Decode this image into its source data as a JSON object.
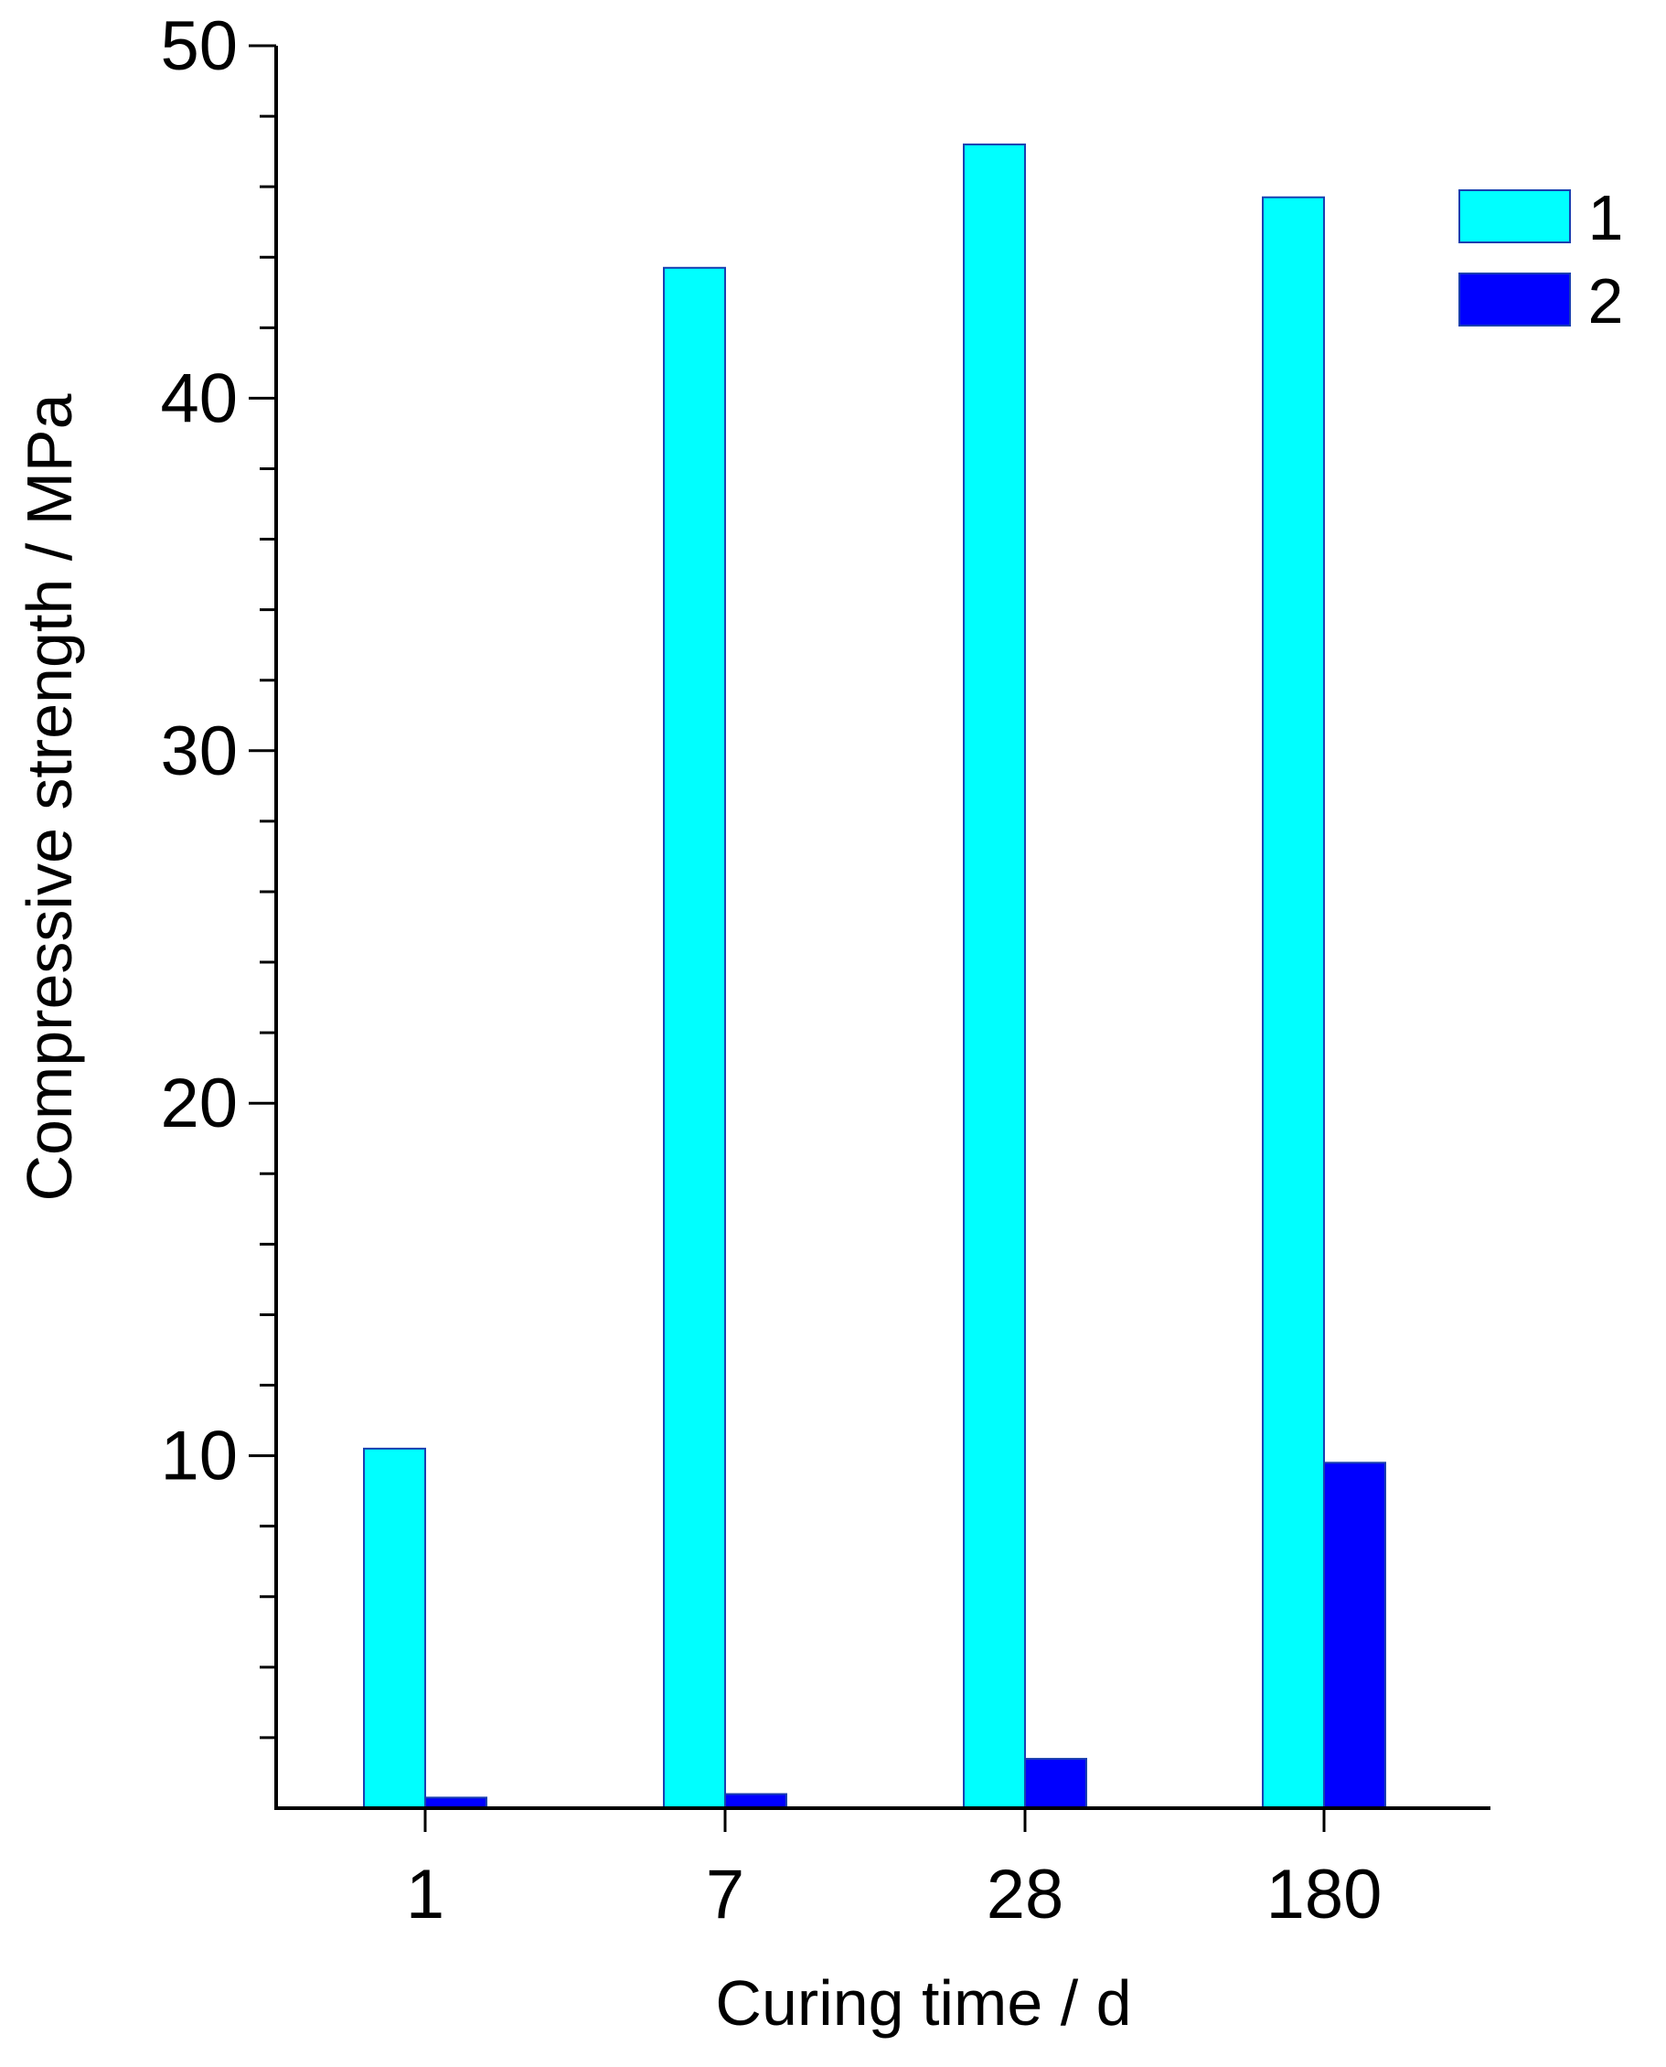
{
  "chart_data": {
    "type": "bar",
    "title": "",
    "xlabel": "Curing time / d",
    "ylabel": "Compressive strength / MPa",
    "categories": [
      "1",
      "7",
      "28",
      "180"
    ],
    "ylim": [
      0,
      50
    ],
    "y_ticks": [
      "10",
      "20",
      "30",
      "40",
      "50"
    ],
    "grid": false,
    "legend_position": "top-right",
    "series": [
      {
        "name": "1",
        "color": "#00FFFF",
        "values": [
          10.2,
          43.7,
          47.2,
          45.7
        ]
      },
      {
        "name": "2",
        "color": "#0000FF",
        "values": [
          0.3,
          0.4,
          1.4,
          9.8
        ]
      }
    ]
  }
}
